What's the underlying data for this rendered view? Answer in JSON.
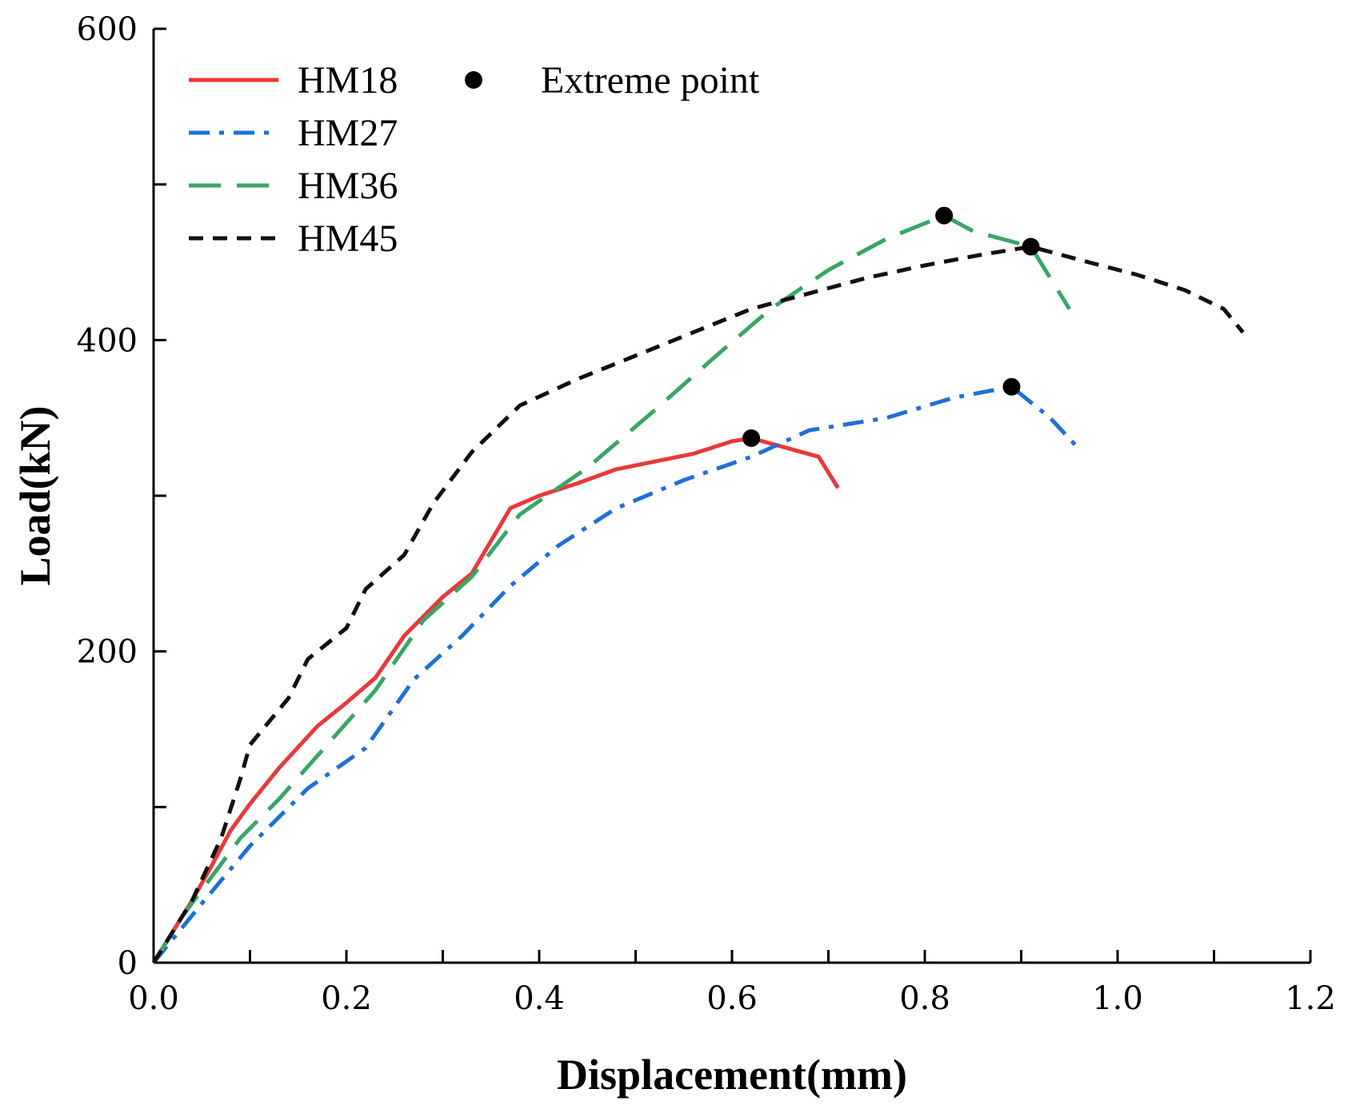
{
  "chart_data": {
    "type": "line",
    "title": "",
    "xlabel": "Displacement(mm)",
    "ylabel": "Load(kN)",
    "xlim": [
      0,
      1.2
    ],
    "ylim": [
      0,
      600
    ],
    "x_ticks": [
      0,
      0.1,
      0.2,
      0.3,
      0.4,
      0.5,
      0.6,
      0.7,
      0.8,
      0.9,
      1.0,
      1.1,
      1.2
    ],
    "x_tick_labels": [
      {
        "value": 0,
        "label": "0.0"
      },
      {
        "value": 0.2,
        "label": "0.2"
      },
      {
        "value": 0.4,
        "label": "0.4"
      },
      {
        "value": 0.6,
        "label": "0.6"
      },
      {
        "value": 0.8,
        "label": "0.8"
      },
      {
        "value": 1.0,
        "label": "1.0"
      },
      {
        "value": 1.2,
        "label": "1.2"
      }
    ],
    "y_ticks": [
      0,
      100,
      200,
      300,
      400,
      500,
      600
    ],
    "y_tick_labels": [
      {
        "value": 0,
        "label": "0"
      },
      {
        "value": 200,
        "label": "200"
      },
      {
        "value": 400,
        "label": "400"
      },
      {
        "value": 600,
        "label": "600"
      }
    ],
    "grid": false,
    "legend_position": "top-left",
    "series": [
      {
        "name": "HM18",
        "color": "#e8393a",
        "style": "solid",
        "x": [
          0,
          0.02,
          0.04,
          0.06,
          0.08,
          0.1,
          0.13,
          0.17,
          0.2,
          0.23,
          0.26,
          0.3,
          0.33,
          0.37,
          0.4,
          0.44,
          0.48,
          0.52,
          0.56,
          0.6,
          0.62,
          0.69,
          0.71
        ],
        "y": [
          0,
          20,
          40,
          62,
          85,
          102,
          125,
          152,
          167,
          183,
          210,
          235,
          250,
          292,
          300,
          308,
          317,
          322,
          327,
          335,
          337,
          325,
          305
        ],
        "extreme_point": {
          "x": 0.62,
          "y": 337
        }
      },
      {
        "name": "HM27",
        "color": "#1f6fd6",
        "style": "dash-dot",
        "x": [
          0,
          0.05,
          0.1,
          0.16,
          0.22,
          0.27,
          0.32,
          0.37,
          0.42,
          0.48,
          0.55,
          0.62,
          0.68,
          0.76,
          0.83,
          0.89,
          0.93,
          0.96
        ],
        "y": [
          0,
          38,
          75,
          112,
          138,
          182,
          210,
          242,
          268,
          292,
          310,
          325,
          342,
          350,
          363,
          370,
          350,
          330
        ],
        "extreme_point": {
          "x": 0.89,
          "y": 370
        }
      },
      {
        "name": "HM36",
        "color": "#3aa565",
        "style": "long-dash",
        "x": [
          0,
          0.03,
          0.06,
          0.09,
          0.13,
          0.18,
          0.23,
          0.28,
          0.33,
          0.38,
          0.45,
          0.52,
          0.58,
          0.64,
          0.7,
          0.76,
          0.82,
          0.85,
          0.88,
          0.91,
          0.95
        ],
        "y": [
          0,
          30,
          55,
          80,
          105,
          140,
          175,
          220,
          248,
          288,
          318,
          355,
          388,
          420,
          445,
          465,
          480,
          470,
          465,
          460,
          420
        ],
        "extreme_point": {
          "x": 0.82,
          "y": 480
        }
      },
      {
        "name": "HM45",
        "color": "#111111",
        "style": "dashed",
        "x": [
          0,
          0.04,
          0.07,
          0.09,
          0.1,
          0.12,
          0.14,
          0.16,
          0.2,
          0.22,
          0.26,
          0.29,
          0.33,
          0.38,
          0.44,
          0.5,
          0.56,
          0.62,
          0.68,
          0.74,
          0.8,
          0.86,
          0.91,
          0.97,
          1.02,
          1.07,
          1.11,
          1.13
        ],
        "y": [
          0,
          40,
          80,
          118,
          140,
          155,
          170,
          195,
          215,
          240,
          262,
          295,
          328,
          358,
          375,
          390,
          405,
          420,
          430,
          440,
          448,
          455,
          460,
          450,
          442,
          432,
          420,
          405
        ],
        "extreme_point": {
          "x": 0.91,
          "y": 460
        }
      }
    ],
    "legend": {
      "items": [
        "HM18",
        "HM27",
        "HM36",
        "HM45"
      ],
      "marker_label": "Extreme point"
    }
  }
}
